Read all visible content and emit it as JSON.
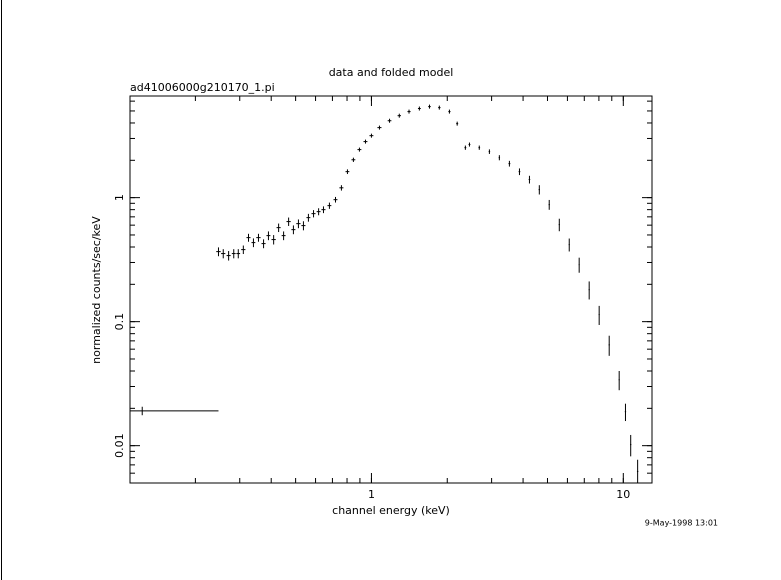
{
  "chart_data": {
    "type": "scatter",
    "title": "data and folded model",
    "subtitle": "ad41006000g210170_1.pi",
    "x_label": "channel energy (keV)",
    "y_label": "normalized counts/sec/keV",
    "annotation": "9-May-1998 13:01",
    "x_scale": "log",
    "y_scale": "log",
    "xlim": [
      0.11,
      13
    ],
    "ylim": [
      0.005,
      6.6
    ],
    "xticks": [
      1,
      10
    ],
    "yticks": [
      0.01,
      0.1,
      1
    ],
    "color": "#000000",
    "series": [
      {
        "name": "ad41006000g210170_1.pi",
        "color": "#000000",
        "x": [
          0.123,
          0.247,
          0.258,
          0.271,
          0.284,
          0.296,
          0.31,
          0.325,
          0.34,
          0.356,
          0.373,
          0.39,
          0.409,
          0.428,
          0.448,
          0.469,
          0.49,
          0.513,
          0.537,
          0.562,
          0.589,
          0.617,
          0.645,
          0.681,
          0.72,
          0.76,
          0.803,
          0.848,
          0.896,
          0.947,
          1.0,
          1.076,
          1.18,
          1.29,
          1.41,
          1.55,
          1.7,
          1.86,
          2.04,
          2.19,
          2.36,
          2.45,
          2.68,
          2.94,
          3.22,
          3.53,
          3.87,
          4.24,
          4.64,
          5.08,
          5.57,
          6.1,
          6.68,
          7.32,
          8.02,
          8.79,
          9.63,
          10.2,
          10.7,
          11.4
        ],
        "values": [
          0.0191,
          0.367,
          0.354,
          0.341,
          0.354,
          0.354,
          0.381,
          0.476,
          0.434,
          0.476,
          0.426,
          0.494,
          0.459,
          0.573,
          0.494,
          0.641,
          0.552,
          0.617,
          0.595,
          0.69,
          0.743,
          0.771,
          0.8,
          0.862,
          0.963,
          1.2,
          1.62,
          2.02,
          2.44,
          2.83,
          3.16,
          3.67,
          4.17,
          4.58,
          4.94,
          5.23,
          5.42,
          5.32,
          4.94,
          3.95,
          2.53,
          2.68,
          2.53,
          2.35,
          2.1,
          1.88,
          1.62,
          1.4,
          1.16,
          0.878,
          0.606,
          0.418,
          0.288,
          0.181,
          0.114,
          0.065,
          0.034,
          0.0188,
          0.0102,
          0.0062
        ],
        "xerr": [
          0.124,
          0.005,
          0.005,
          0.005,
          0.005,
          0.005,
          0.006,
          0.006,
          0.006,
          0.007,
          0.007,
          0.007,
          0.008,
          0.008,
          0.008,
          0.009,
          0.009,
          0.01,
          0.01,
          0.01,
          0.011,
          0.011,
          0.012,
          0.012,
          0.013,
          0.014,
          0.014,
          0.015,
          0.016,
          0.017,
          0.018,
          0.02,
          0.02,
          0.02,
          0.02,
          0.02,
          0.02,
          0.02,
          0.02,
          0.02,
          0.02,
          0.02,
          0.02,
          0.02,
          0.02,
          0.03,
          0.03,
          0.03,
          0.03,
          0.03,
          0.03,
          0.03,
          0.03,
          0.04,
          0.04,
          0.05,
          0.05,
          0.06,
          0.06,
          0.07
        ],
        "yerr": [
          0.0015,
          0.03,
          0.03,
          0.03,
          0.03,
          0.03,
          0.03,
          0.035,
          0.035,
          0.035,
          0.035,
          0.04,
          0.04,
          0.045,
          0.04,
          0.05,
          0.045,
          0.05,
          0.05,
          0.05,
          0.05,
          0.05,
          0.05,
          0.05,
          0.05,
          0.06,
          0.07,
          0.08,
          0.09,
          0.1,
          0.1,
          0.12,
          0.13,
          0.14,
          0.15,
          0.15,
          0.15,
          0.15,
          0.15,
          0.12,
          0.1,
          0.1,
          0.1,
          0.1,
          0.1,
          0.1,
          0.1,
          0.1,
          0.1,
          0.08,
          0.07,
          0.05,
          0.04,
          0.03,
          0.02,
          0.012,
          0.006,
          0.003,
          0.002,
          0.0015
        ]
      }
    ]
  }
}
